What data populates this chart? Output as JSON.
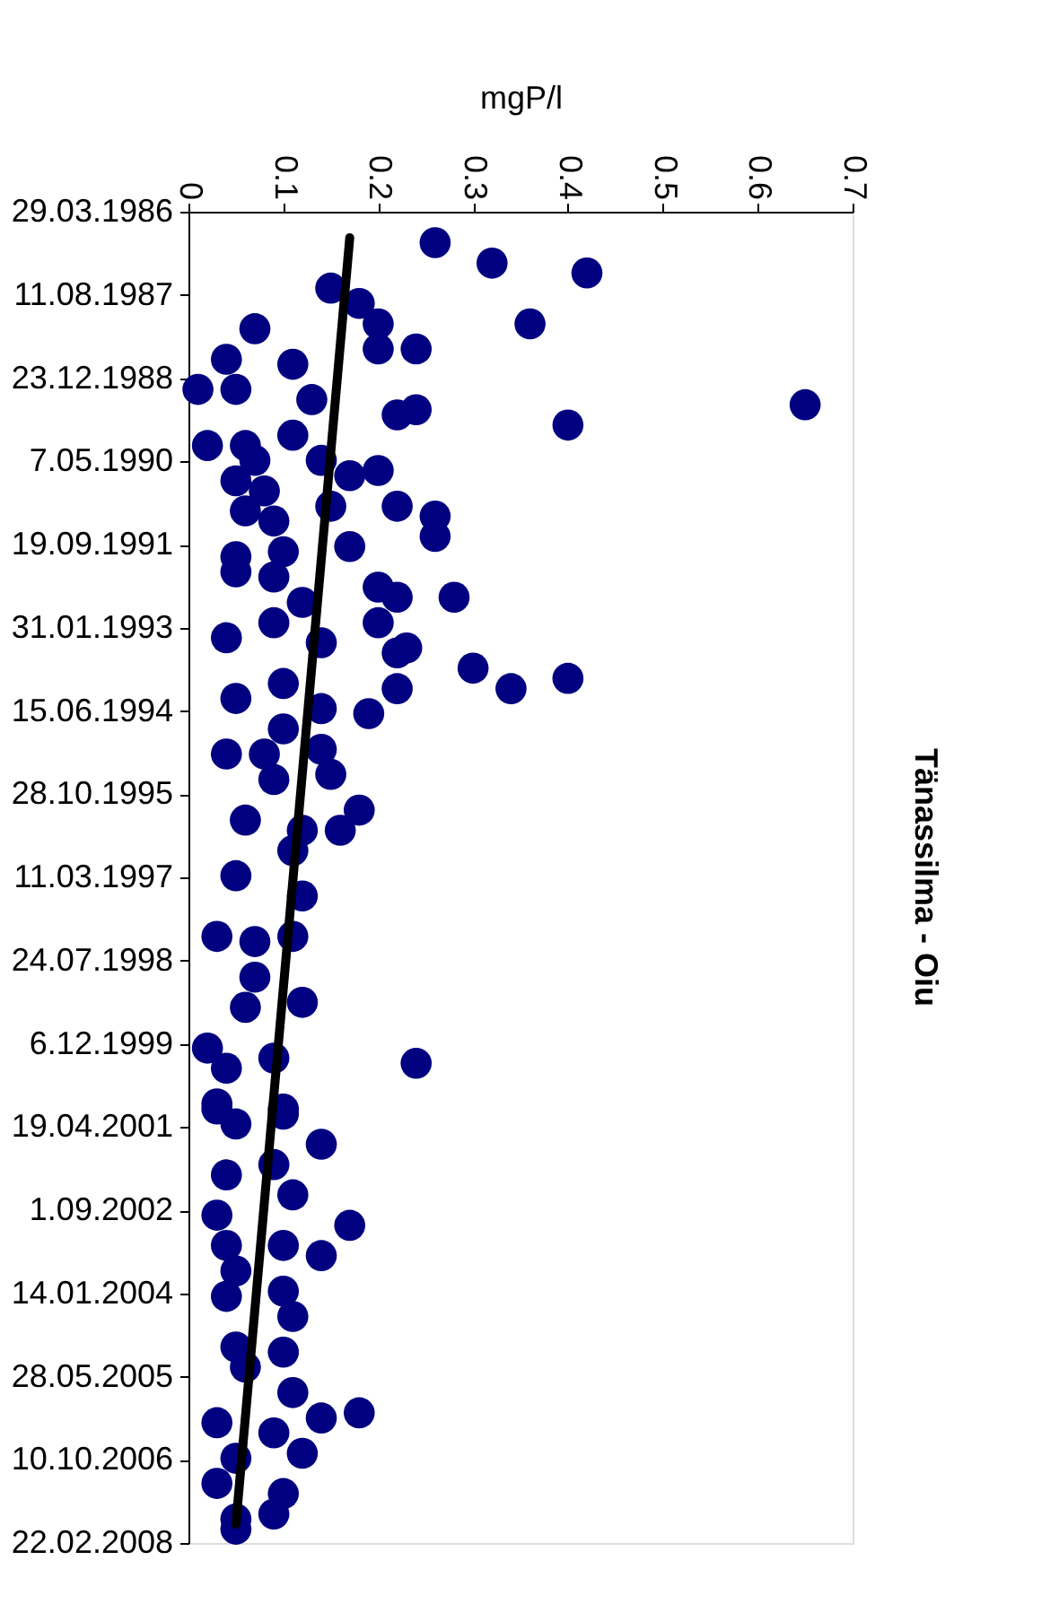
{
  "chart_data": {
    "type": "scatter",
    "title": "Tänassilma - Oiu",
    "ylabel": "mgP/l",
    "marker": "circle",
    "orientation": "horizontal",
    "ylim": [
      "2008-02-22",
      "1986-03-29"
    ],
    "yticks": [
      {
        "value": "1986-03-29",
        "label": "29.03.1986"
      },
      {
        "value": "1987-08-11",
        "label": "11.08.1987"
      },
      {
        "value": "1988-12-23",
        "label": "23.12.1988"
      },
      {
        "value": "1990-05-07",
        "label": "7.05.1990"
      },
      {
        "value": "1991-09-19",
        "label": "19.09.1991"
      },
      {
        "value": "1993-01-31",
        "label": "31.01.1993"
      },
      {
        "value": "1994-06-15",
        "label": "15.06.1994"
      },
      {
        "value": "1995-10-28",
        "label": "28.10.1995"
      },
      {
        "value": "1997-03-11",
        "label": "11.03.1997"
      },
      {
        "value": "1998-07-24",
        "label": "24.07.1998"
      },
      {
        "value": "1999-12-06",
        "label": "6.12.1999"
      },
      {
        "value": "2001-04-19",
        "label": "19.04.2001"
      },
      {
        "value": "2002-09-01",
        "label": "1.09.2002"
      },
      {
        "value": "2004-01-14",
        "label": "14.01.2004"
      },
      {
        "value": "2005-05-28",
        "label": "28.05.2005"
      },
      {
        "value": "2006-10-10",
        "label": "10.10.2006"
      },
      {
        "value": "2008-02-22",
        "label": "22.02.2008"
      }
    ],
    "xlim": [
      0,
      0.7
    ],
    "xticks": [
      0,
      0.1,
      0.2,
      0.3,
      0.4,
      0.5,
      0.6,
      0.7
    ],
    "series": [
      {
        "type": "scatter",
        "color": "#000080",
        "x": [
          "1986-10",
          "1987-02",
          "1987-04",
          "1987-07",
          "1987-10",
          "1988-02",
          "1988-07",
          "1988-07",
          "1988-02",
          "1988-03",
          "1988-09",
          "1988-10",
          "1989-03",
          "1989-03",
          "1989-05",
          "1989-07",
          "1989-08",
          "1989-06",
          "1989-10",
          "1990-02",
          "1990-02",
          "1989-12",
          "1990-05",
          "1990-05",
          "1990-07",
          "1990-09",
          "1990-11",
          "1990-08",
          "1991-02",
          "1991-04",
          "1991-02",
          "1991-03",
          "1991-05",
          "1991-08",
          "1991-10",
          "1991-12",
          "1991-11",
          "1992-03",
          "1992-04",
          "1992-06",
          "1992-08",
          "1992-08",
          "1992-09",
          "1993-01",
          "1993-04",
          "1993-01",
          "1993-05",
          "1993-06",
          "1993-07",
          "1993-10",
          "1994-02",
          "1993-12",
          "1994-02",
          "1994-04",
          "1994-01",
          "1994-07",
          "1994-06",
          "1994-10",
          "1995-03",
          "1995-03",
          "1995-02",
          "1995-07",
          "1995-08",
          "1996-02",
          "1996-06",
          "1996-04",
          "1996-06",
          "1996-10",
          "1997-03",
          "1997-07",
          "1998-03",
          "1998-04",
          "1998-03",
          "1998-11",
          "1999-05",
          "1999-04",
          "2000-01",
          "2000-03",
          "2000-04",
          "2000-05",
          "2000-12",
          "2001-01",
          "2001-01",
          "2001-02",
          "2001-04",
          "2001-08",
          "2002-02",
          "2001-12",
          "2002-06",
          "2002-10",
          "2002-12",
          "2003-04",
          "2003-04",
          "2003-06",
          "2003-09",
          "2004-01",
          "2004-02",
          "2004-06",
          "2004-12",
          "2005-01",
          "2005-04",
          "2005-09",
          "2006-02",
          "2006-01",
          "2006-03",
          "2006-05",
          "2006-10",
          "2006-09",
          "2007-03",
          "2007-05",
          "2007-10",
          "2007-09",
          "2007-12"
        ],
        "values": [
          0.26,
          0.32,
          0.42,
          0.15,
          0.18,
          0.2,
          0.2,
          0.24,
          0.36,
          0.07,
          0.04,
          0.11,
          0.01,
          0.05,
          0.13,
          0.24,
          0.22,
          0.65,
          0.4,
          0.02,
          0.06,
          0.11,
          0.07,
          0.14,
          0.2,
          0.05,
          0.08,
          0.17,
          0.22,
          0.26,
          0.15,
          0.06,
          0.09,
          0.26,
          0.17,
          0.05,
          0.1,
          0.05,
          0.09,
          0.2,
          0.22,
          0.28,
          0.12,
          0.2,
          0.04,
          0.09,
          0.14,
          0.23,
          0.22,
          0.3,
          0.34,
          0.4,
          0.22,
          0.05,
          0.1,
          0.19,
          0.14,
          0.1,
          0.04,
          0.08,
          0.14,
          0.15,
          0.09,
          0.18,
          0.16,
          0.06,
          0.12,
          0.11,
          0.05,
          0.12,
          0.03,
          0.07,
          0.11,
          0.07,
          0.06,
          0.12,
          0.02,
          0.09,
          0.24,
          0.04,
          0.03,
          0.1,
          0.03,
          0.1,
          0.05,
          0.14,
          0.04,
          0.09,
          0.11,
          0.03,
          0.17,
          0.04,
          0.1,
          0.14,
          0.05,
          0.1,
          0.04,
          0.11,
          0.05,
          0.1,
          0.06,
          0.11,
          0.14,
          0.18,
          0.03,
          0.09,
          0.05,
          0.12,
          0.03,
          0.1,
          0.05,
          0.09,
          0.05
        ]
      },
      {
        "type": "line",
        "color": "#000000",
        "line_style": "solid",
        "marker": "none",
        "x": [
          "1986-09",
          "2007-11"
        ],
        "values": [
          0.17,
          0.05
        ]
      }
    ]
  }
}
